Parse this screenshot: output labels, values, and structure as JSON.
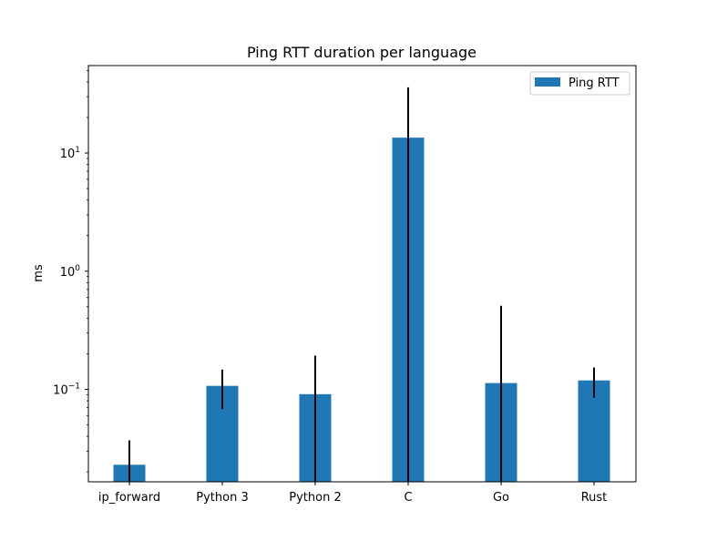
{
  "chart_data": {
    "type": "bar",
    "title": "Ping RTT duration per language",
    "xlabel": "",
    "ylabel": "ms",
    "yscale": "log",
    "ylim": [
      0.0165,
      55
    ],
    "yticks": [
      {
        "value": 0.1,
        "base": "10",
        "exp": "−1"
      },
      {
        "value": 1,
        "base": "10",
        "exp": "0"
      },
      {
        "value": 10,
        "base": "10",
        "exp": "1"
      }
    ],
    "categories": [
      "ip_forward",
      "Python 3",
      "Python 2",
      "C",
      "Go",
      "Rust"
    ],
    "series": [
      {
        "name": "Ping RTT",
        "color": "#1f77b4",
        "values": [
          0.023,
          0.107,
          0.091,
          13.5,
          0.113,
          0.119
        ],
        "err_low": [
          0.0165,
          0.068,
          0.0165,
          0.0165,
          0.0165,
          0.085
        ],
        "err_high": [
          0.037,
          0.147,
          0.193,
          36.0,
          0.51,
          0.153
        ]
      }
    ],
    "legend": {
      "placement": "upper-right"
    },
    "grid": false
  }
}
